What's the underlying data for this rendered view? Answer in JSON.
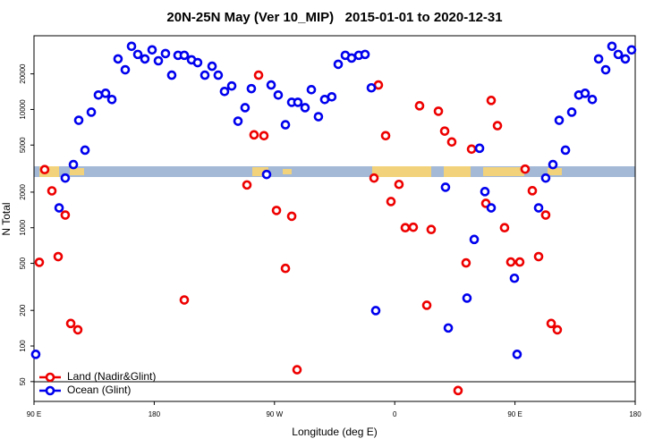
{
  "chart_data": {
    "type": "scatter",
    "title": "20N-25N May (Ver 10_MIP)   2015-01-01 to 2020-12-31",
    "x_label": "Longitude (deg E)",
    "y_label": "N Total",
    "xlim": [
      90,
      540
    ],
    "xticks": [
      {
        "value": 90,
        "label": "90 E"
      },
      {
        "value": 180,
        "label": "180"
      },
      {
        "value": 270,
        "label": "90 W"
      },
      {
        "value": 360,
        "label": "0"
      },
      {
        "value": 450,
        "label": "90 E"
      },
      {
        "value": 540,
        "label": "180"
      }
    ],
    "ylim": [
      34,
      42000
    ],
    "yticks": [
      50,
      100,
      200,
      500,
      1000,
      2000,
      5000,
      10000,
      20000
    ],
    "log_y": true,
    "legend": "lower left",
    "series": [
      {
        "name": "Land (Nadir&Glint)",
        "color": "#ee0000",
        "x": [
          94.0,
          98.0,
          103.4,
          108.1,
          113.4,
          117.5,
          122.8,
          202.5,
          249.4,
          254.7,
          258.1,
          262.1,
          271.5,
          278.2,
          282.9,
          286.9,
          347.8,
          353.2,
          344.5,
          357.2,
          363.2,
          367.9,
          373.9,
          378.6,
          387.3,
          384.0,
          392.7,
          397.4,
          402.7,
          407.4,
          413.4,
          417.5,
          428.2,
          432.2,
          436.9,
          442.2,
          446.9,
          453.6,
          457.6,
          463.0,
          467.7,
          473.0,
          477.1,
          481.7
        ],
        "values": [
          510,
          3100,
          2050,
          570,
          1280,
          155,
          137,
          245,
          2300,
          6100,
          19500,
          6000,
          1400,
          453,
          1250,
          63,
          16100,
          6000,
          2630,
          1665,
          2325,
          1000,
          1010,
          10740,
          966,
          221,
          9660,
          6560,
          5310,
          42,
          504,
          4620,
          1607,
          11920,
          7290,
          1000,
          513,
          513,
          3130,
          2056,
          570,
          1280,
          155,
          137
        ]
      },
      {
        "name": "Ocean (Glint)",
        "color": "#0000ee",
        "x": [
          91.3,
          108.8,
          113.4,
          119.5,
          123.5,
          128.2,
          132.9,
          138.2,
          143.6,
          148.3,
          152.9,
          158.3,
          163.0,
          167.7,
          173.0,
          178.4,
          183.1,
          188.4,
          193.1,
          197.8,
          202.5,
          207.9,
          212.5,
          217.9,
          223.3,
          227.9,
          232.6,
          238.0,
          242.7,
          248.0,
          252.7,
          264.1,
          267.5,
          272.8,
          278.2,
          282.9,
          287.5,
          292.9,
          297.6,
          302.9,
          307.6,
          312.9,
          317.7,
          323.0,
          327.7,
          333.1,
          337.8,
          342.5,
          345.8,
          398.0,
          400.1,
          414.1,
          419.5,
          423.5,
          427.5,
          432.2,
          449.6,
          451.6,
          467.7,
          473.0,
          478.4,
          483.1,
          487.8,
          492.5,
          497.8,
          502.5,
          507.9,
          512.6,
          517.9,
          522.6,
          527.3,
          532.6,
          537.3
        ],
        "values": [
          85,
          1472,
          2630,
          3420,
          8100,
          4530,
          9490,
          13250,
          13700,
          12140,
          26760,
          21660,
          34200,
          29200,
          26760,
          31900,
          25800,
          29700,
          19500,
          28700,
          28700,
          26300,
          24900,
          19500,
          23200,
          19500,
          14200,
          15800,
          7960,
          10350,
          15000,
          2820,
          16100,
          13250,
          7420,
          11500,
          11500,
          10350,
          14700,
          8690,
          12140,
          12790,
          24100,
          28700,
          27200,
          28700,
          29200,
          15240,
          199,
          2200,
          142,
          254,
          796,
          4700,
          2020,
          1472,
          374,
          85,
          1472,
          2630,
          3420,
          8100,
          4530,
          9490,
          13250,
          13700,
          12140,
          26760,
          21660,
          34200,
          29200,
          26760,
          31900
        ]
      }
    ]
  }
}
